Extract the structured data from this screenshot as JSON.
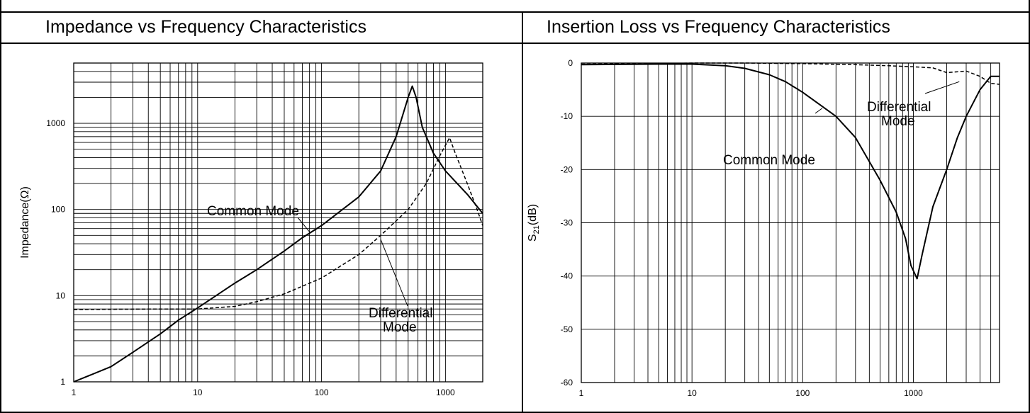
{
  "panels": {
    "left_title": "Impedance vs Frequency Characteristics",
    "right_title": "Insertion Loss vs Frequency Characteristics"
  },
  "chart_data": [
    {
      "type": "line",
      "title": "Impedance vs Frequency Characteristics",
      "xlabel": "",
      "ylabel": "Impedance(Ω)",
      "x_scale": "log",
      "y_scale": "log",
      "xlim": [
        1,
        2000
      ],
      "ylim": [
        1,
        5000
      ],
      "x_ticks": [
        1,
        10,
        100,
        1000
      ],
      "y_ticks": [
        1,
        10,
        100,
        1000
      ],
      "x_tick_labels": [
        "1",
        "10",
        "100",
        "1000"
      ],
      "y_tick_labels": [
        "1",
        "10",
        "100",
        "1000"
      ],
      "grid": true,
      "series": [
        {
          "name": "Common Mode",
          "style": "solid",
          "points": [
            [
              1,
              1
            ],
            [
              2,
              1.5
            ],
            [
              3,
              2.2
            ],
            [
              5,
              3.6
            ],
            [
              7,
              5.2
            ],
            [
              10,
              7.2
            ],
            [
              20,
              14
            ],
            [
              30,
              20
            ],
            [
              50,
              33
            ],
            [
              70,
              47
            ],
            [
              100,
              65
            ],
            [
              200,
              140
            ],
            [
              300,
              280
            ],
            [
              400,
              700
            ],
            [
              500,
              2000
            ],
            [
              540,
              2700
            ],
            [
              580,
              2000
            ],
            [
              650,
              900
            ],
            [
              800,
              450
            ],
            [
              1000,
              280
            ],
            [
              1500,
              150
            ],
            [
              2000,
              90
            ]
          ]
        },
        {
          "name": "Differential Mode",
          "style": "dashed",
          "points": [
            [
              1,
              6.9
            ],
            [
              5,
              7
            ],
            [
              10,
              7
            ],
            [
              20,
              7.5
            ],
            [
              30,
              8.5
            ],
            [
              50,
              10.5
            ],
            [
              100,
              16
            ],
            [
              200,
              30
            ],
            [
              300,
              50
            ],
            [
              500,
              100
            ],
            [
              700,
              200
            ],
            [
              900,
              420
            ],
            [
              1080,
              680
            ],
            [
              1200,
              450
            ],
            [
              1500,
              200
            ],
            [
              1800,
              100
            ],
            [
              2000,
              65
            ]
          ]
        }
      ],
      "annotations": [
        {
          "text_line1": "Common Mode",
          "text_line2": "",
          "target": [
            80,
            55
          ]
        },
        {
          "text_line1": "Differential",
          "text_line2": "Mode",
          "target": [
            300,
            45
          ]
        }
      ]
    },
    {
      "type": "line",
      "title": "Insertion Loss vs Frequency Characteristics",
      "xlabel": "",
      "ylabel_main": "S",
      "ylabel_sub": "21",
      "ylabel_suffix": "(dB)",
      "x_scale": "log",
      "y_scale": "linear",
      "xlim": [
        1,
        6000
      ],
      "ylim": [
        -60,
        0
      ],
      "x_ticks": [
        1,
        10,
        100,
        1000
      ],
      "y_ticks": [
        0,
        -10,
        -20,
        -30,
        -40,
        -50,
        -60
      ],
      "x_tick_labels": [
        "1",
        "10",
        "100",
        "1000"
      ],
      "y_tick_labels": [
        "0",
        "-10",
        "-20",
        "-30",
        "-40",
        "-50",
        "-60"
      ],
      "grid": true,
      "series": [
        {
          "name": "Common Mode",
          "style": "solid",
          "points": [
            [
              1,
              -0.3
            ],
            [
              5,
              -0.2
            ],
            [
              10,
              -0.2
            ],
            [
              20,
              -0.5
            ],
            [
              30,
              -1
            ],
            [
              50,
              -2.2
            ],
            [
              70,
              -3.5
            ],
            [
              100,
              -5.5
            ],
            [
              200,
              -10
            ],
            [
              300,
              -14
            ],
            [
              500,
              -22
            ],
            [
              700,
              -28
            ],
            [
              850,
              -33
            ],
            [
              950,
              -38
            ],
            [
              1080,
              -40.5
            ],
            [
              1200,
              -36
            ],
            [
              1500,
              -27
            ],
            [
              2000,
              -20
            ],
            [
              2500,
              -14
            ],
            [
              3000,
              -10
            ],
            [
              4000,
              -5
            ],
            [
              5000,
              -2.5
            ],
            [
              6000,
              -2.5
            ]
          ]
        },
        {
          "name": "Differential Mode",
          "style": "dashed",
          "points": [
            [
              1,
              -0.2
            ],
            [
              5,
              -0.1
            ],
            [
              10,
              0
            ],
            [
              30,
              0
            ],
            [
              100,
              -0.1
            ],
            [
              300,
              -0.3
            ],
            [
              600,
              -0.5
            ],
            [
              1000,
              -0.7
            ],
            [
              1500,
              -0.9
            ],
            [
              2000,
              -1.8
            ],
            [
              3000,
              -1.5
            ],
            [
              4000,
              -2.5
            ],
            [
              5000,
              -3.8
            ],
            [
              6000,
              -4
            ]
          ]
        }
      ],
      "annotations": [
        {
          "text_line1": "Differential",
          "text_line2": "Mode",
          "target": [
            2600,
            -3.5
          ]
        },
        {
          "text_line1": "Common Mode",
          "text_line2": "",
          "target": [
            150,
            -8.5
          ]
        }
      ]
    }
  ]
}
